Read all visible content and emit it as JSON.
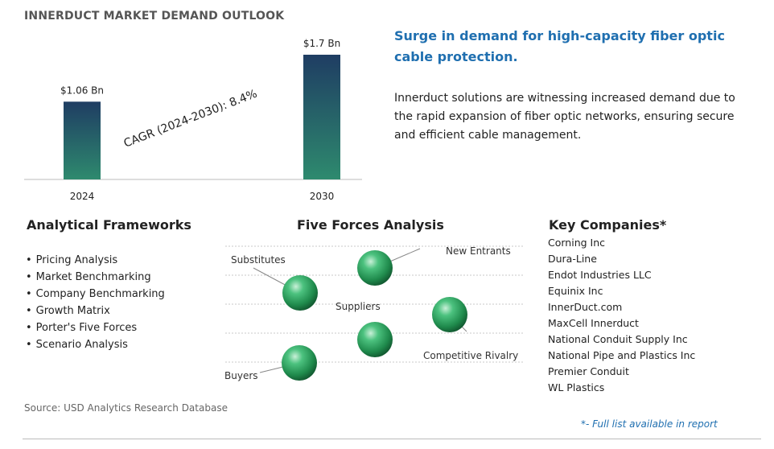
{
  "title": "INNERDUCT MARKET DEMAND OUTLOOK",
  "chart_data": {
    "type": "bar",
    "categories": [
      "2024",
      "2030"
    ],
    "values": [
      1.06,
      1.7
    ],
    "value_labels": [
      "$1.06 Bn",
      "$1.7 Bn"
    ],
    "annotation": "CAGR (2024-2030):  8.4%",
    "bar_colors": [
      "#2e7d6b",
      "#1f3d63"
    ]
  },
  "headline": "Surge in demand for high-capacity fiber optic cable protection.",
  "description": "Innerduct solutions are witnessing increased demand due to the rapid expansion of fiber optic networks, ensuring secure and efficient cable management.",
  "frameworks": {
    "title": "Analytical Frameworks",
    "items": [
      "Pricing Analysis",
      "Market Benchmarking",
      "Company Benchmarking",
      "Growth Matrix",
      "Porter's Five Forces",
      "Scenario Analysis"
    ]
  },
  "five_forces": {
    "title": "Five Forces Analysis",
    "labels": {
      "new_entrants": "New Entrants",
      "substitutes": "Substitutes",
      "suppliers": "Suppliers",
      "competitive_rivalry": "Competitive Rivalry",
      "buyers": "Buyers"
    }
  },
  "companies": {
    "title": "Key Companies*",
    "items": [
      "Corning Inc",
      "Dura-Line",
      "Endot Industries LLC",
      "Equinix Inc",
      "InnerDuct.com",
      "MaxCell Innerduct",
      "National Conduit Supply Inc",
      "National Pipe and Plastics Inc",
      "Premier Conduit",
      "WL Plastics"
    ]
  },
  "source": "Source: USD Analytics Research Database",
  "footnote": "*- Full list available in report",
  "colors": {
    "accent": "#1f6fb0",
    "sphere": "#2e9e5f"
  }
}
